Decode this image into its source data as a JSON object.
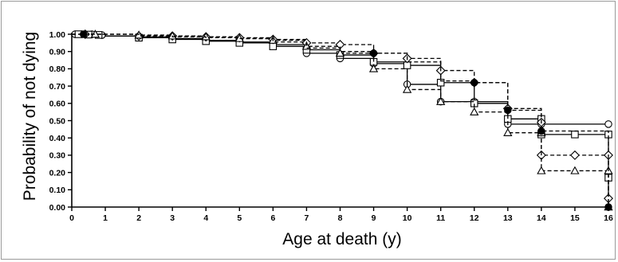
{
  "chart_data": {
    "type": "line",
    "step": true,
    "xlabel": "Age at death (y)",
    "ylabel": "Probability of not dying",
    "xlim": [
      0,
      16
    ],
    "ylim": [
      0,
      1.0
    ],
    "x_ticks": [
      "0",
      "1",
      "2",
      "3",
      "4",
      "5",
      "6",
      "7",
      "8",
      "9",
      "10",
      "11",
      "12",
      "13",
      "14",
      "15",
      "16"
    ],
    "y_ticks": [
      "0.00",
      "0.10",
      "0.20",
      "0.30",
      "0.40",
      "0.50",
      "0.60",
      "0.70",
      "0.80",
      "0.90",
      "1.00"
    ],
    "grid": false,
    "legend": "none",
    "series": [
      {
        "marker": "circle",
        "dash": "solid",
        "points": [
          [
            0,
            1.0
          ],
          [
            1,
            0.99
          ],
          [
            2,
            0.985
          ],
          [
            3,
            0.975
          ],
          [
            4,
            0.965
          ],
          [
            5,
            0.955
          ],
          [
            6,
            0.94
          ],
          [
            7,
            0.89
          ],
          [
            8,
            0.86
          ],
          [
            9,
            0.83
          ],
          [
            10,
            0.71
          ],
          [
            11,
            0.61
          ],
          [
            12,
            0.61
          ],
          [
            13,
            0.48
          ],
          [
            14,
            0.48
          ],
          [
            16,
            0.48
          ]
        ],
        "markers": [
          [
            0.1,
            1.0
          ],
          [
            0.3,
            1.0
          ],
          [
            0.6,
            1.0
          ],
          [
            0.9,
            0.995
          ],
          [
            7,
            0.89
          ],
          [
            8,
            0.86
          ],
          [
            9,
            0.83
          ],
          [
            10,
            0.71
          ],
          [
            11,
            0.61
          ],
          [
            12,
            0.61
          ],
          [
            13,
            0.48
          ],
          [
            14,
            0.48
          ],
          [
            16,
            0.48
          ]
        ]
      },
      {
        "marker": "square",
        "dash": "solid",
        "points": [
          [
            0,
            1.0
          ],
          [
            1,
            0.99
          ],
          [
            2,
            0.98
          ],
          [
            3,
            0.97
          ],
          [
            4,
            0.96
          ],
          [
            5,
            0.95
          ],
          [
            6,
            0.93
          ],
          [
            7,
            0.91
          ],
          [
            8,
            0.88
          ],
          [
            9,
            0.84
          ],
          [
            10,
            0.82
          ],
          [
            11,
            0.72
          ],
          [
            12,
            0.6
          ],
          [
            13,
            0.51
          ],
          [
            14,
            0.51
          ],
          [
            14,
            0.42
          ],
          [
            15,
            0.42
          ],
          [
            16,
            0.42
          ],
          [
            16,
            0.17
          ],
          [
            16,
            0.0
          ]
        ],
        "markers": [
          [
            0.2,
            1.0
          ],
          [
            0.5,
            0.998
          ],
          [
            0.8,
            0.996
          ],
          [
            2,
            0.98
          ],
          [
            3,
            0.97
          ],
          [
            4,
            0.96
          ],
          [
            5,
            0.95
          ],
          [
            6,
            0.93
          ],
          [
            7,
            0.91
          ],
          [
            8,
            0.88
          ],
          [
            9,
            0.84
          ],
          [
            10,
            0.82
          ],
          [
            11,
            0.72
          ],
          [
            12,
            0.6
          ],
          [
            13,
            0.51
          ],
          [
            14,
            0.51
          ],
          [
            14,
            0.42
          ],
          [
            15,
            0.42
          ],
          [
            16,
            0.42
          ],
          [
            16,
            0.17
          ]
        ]
      },
      {
        "marker": "diamond",
        "dash": "dashed",
        "points": [
          [
            0,
            1.0
          ],
          [
            2,
            0.99
          ],
          [
            3,
            0.99
          ],
          [
            4,
            0.985
          ],
          [
            5,
            0.98
          ],
          [
            6,
            0.97
          ],
          [
            7,
            0.95
          ],
          [
            8,
            0.94
          ],
          [
            9,
            0.89
          ],
          [
            10,
            0.86
          ],
          [
            11,
            0.79
          ],
          [
            12,
            0.72
          ],
          [
            13,
            0.57
          ],
          [
            14,
            0.49
          ],
          [
            14,
            0.3
          ],
          [
            15,
            0.3
          ],
          [
            16,
            0.3
          ],
          [
            16,
            0.05
          ],
          [
            16,
            0.0
          ]
        ],
        "markers": [
          [
            0.4,
            1.0
          ],
          [
            2,
            0.99
          ],
          [
            3,
            0.99
          ],
          [
            4,
            0.985
          ],
          [
            5,
            0.98
          ],
          [
            6,
            0.97
          ],
          [
            7,
            0.95
          ],
          [
            8,
            0.94
          ],
          [
            9,
            0.89
          ],
          [
            10,
            0.86
          ],
          [
            11,
            0.79
          ],
          [
            12,
            0.72
          ],
          [
            13,
            0.57
          ],
          [
            14,
            0.49
          ],
          [
            14,
            0.3
          ],
          [
            15,
            0.3
          ],
          [
            16,
            0.3
          ],
          [
            16,
            0.05
          ]
        ]
      },
      {
        "marker": "triangle",
        "dash": "dashed",
        "points": [
          [
            0,
            1.0
          ],
          [
            2,
            0.995
          ],
          [
            3,
            0.99
          ],
          [
            4,
            0.985
          ],
          [
            5,
            0.975
          ],
          [
            6,
            0.965
          ],
          [
            7,
            0.93
          ],
          [
            8,
            0.89
          ],
          [
            9,
            0.8
          ],
          [
            10,
            0.68
          ],
          [
            11,
            0.61
          ],
          [
            12,
            0.55
          ],
          [
            13,
            0.43
          ],
          [
            14,
            0.43
          ],
          [
            14,
            0.21
          ],
          [
            15,
            0.21
          ],
          [
            16,
            0.21
          ],
          [
            16,
            0.0
          ]
        ],
        "markers": [
          [
            0.7,
            1.0
          ],
          [
            2,
            0.995
          ],
          [
            3,
            0.99
          ],
          [
            4,
            0.985
          ],
          [
            5,
            0.975
          ],
          [
            6,
            0.965
          ],
          [
            7,
            0.93
          ],
          [
            8,
            0.89
          ],
          [
            9,
            0.8
          ],
          [
            10,
            0.68
          ],
          [
            11,
            0.61
          ],
          [
            12,
            0.55
          ],
          [
            13,
            0.43
          ],
          [
            14,
            0.43
          ],
          [
            14,
            0.21
          ],
          [
            15,
            0.21
          ],
          [
            16,
            0.21
          ],
          [
            16,
            0.0
          ]
        ]
      },
      {
        "marker": "filled-circle",
        "dash": "dashed",
        "points": [
          [
            0,
            1.0
          ],
          [
            2,
            0.99
          ],
          [
            3,
            0.985
          ],
          [
            4,
            0.98
          ],
          [
            5,
            0.975
          ],
          [
            6,
            0.955
          ],
          [
            7,
            0.92
          ],
          [
            8,
            0.9
          ],
          [
            9,
            0.89
          ],
          [
            10,
            0.84
          ],
          [
            11,
            0.73
          ],
          [
            12,
            0.72
          ],
          [
            13,
            0.56
          ],
          [
            14,
            0.44
          ],
          [
            16,
            0.44
          ],
          [
            16,
            0.0
          ]
        ],
        "markers": [
          [
            0.35,
            1.0
          ],
          [
            9,
            0.89
          ],
          [
            12,
            0.72
          ],
          [
            13,
            0.56
          ],
          [
            14,
            0.44
          ],
          [
            16,
            0.0
          ]
        ]
      }
    ]
  }
}
